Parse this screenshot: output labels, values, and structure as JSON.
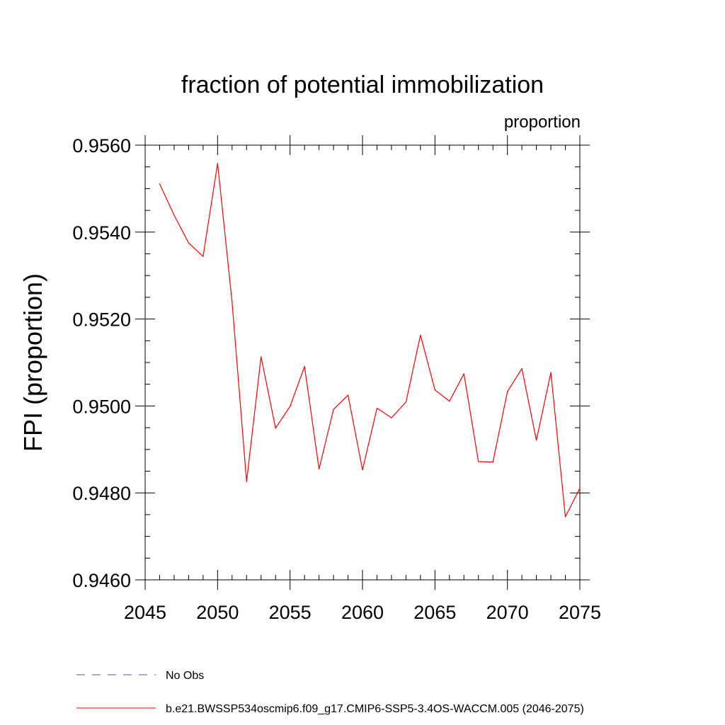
{
  "chart_data": {
    "type": "line",
    "title": "fraction of potential immobilization",
    "subtitle": "proportion",
    "xlabel": "",
    "ylabel": "FPI  (proportion)",
    "xlim": [
      2045,
      2075
    ],
    "ylim": [
      0.946,
      0.956
    ],
    "x_ticks": [
      2045,
      2050,
      2055,
      2060,
      2065,
      2070,
      2075
    ],
    "x_tick_labels": [
      "2045",
      "2050",
      "2055",
      "2060",
      "2065",
      "2070",
      "2075"
    ],
    "x_minor_step": 1,
    "y_ticks": [
      0.946,
      0.948,
      0.95,
      0.952,
      0.954,
      0.956
    ],
    "y_tick_labels": [
      "0.9460",
      "0.9480",
      "0.9500",
      "0.9520",
      "0.9540",
      "0.9560"
    ],
    "y_minor_step": 0.0005,
    "series": [
      {
        "name": "b.e21.BWSSP534oscmip6.f09_g17.CMIP6-SSP5-3.4OS-WACCM.005 (2046-2075)",
        "color": "#ff0000",
        "dash": "solid",
        "x": [
          2046,
          2047,
          2048,
          2049,
          2050,
          2051,
          2052,
          2053,
          2054,
          2055,
          2056,
          2057,
          2058,
          2059,
          2060,
          2061,
          2062,
          2063,
          2064,
          2065,
          2066,
          2067,
          2068,
          2069,
          2070,
          2071,
          2072,
          2073,
          2074,
          2075
        ],
        "values": [
          0.95511,
          0.95439,
          0.95375,
          0.95344,
          0.95558,
          0.95239,
          0.94826,
          0.95113,
          0.94949,
          0.94999,
          0.95091,
          0.94855,
          0.94992,
          0.95025,
          0.94853,
          0.94995,
          0.94973,
          0.95009,
          0.95163,
          0.95037,
          0.95011,
          0.95074,
          0.94872,
          0.94871,
          0.95033,
          0.95086,
          0.94921,
          0.95077,
          0.94745,
          0.94811
        ]
      }
    ],
    "legend": [
      {
        "label": "No Obs",
        "color": "#5a4fa0",
        "dash": "dashed"
      },
      {
        "label": "b.e21.BWSSP534oscmip6.f09_g17.CMIP6-SSP5-3.4OS-WACCM.005 (2046-2075)",
        "color": "#ff0000",
        "dash": "solid"
      }
    ],
    "legend_position": "bottom",
    "grid": false
  }
}
